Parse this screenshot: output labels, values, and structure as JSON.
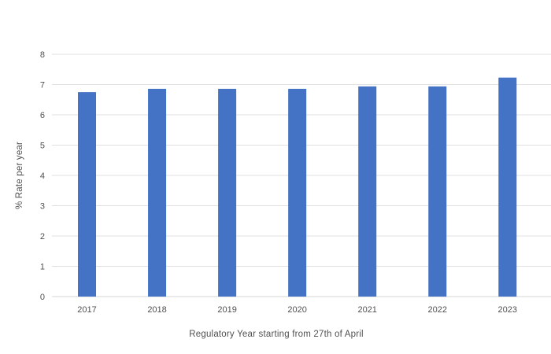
{
  "chart_data": {
    "type": "bar",
    "categories": [
      "2017",
      "2018",
      "2019",
      "2020",
      "2021",
      "2022",
      "2023"
    ],
    "values": [
      6.75,
      6.86,
      6.86,
      6.86,
      6.94,
      6.94,
      7.23
    ],
    "xlabel": "Regulatory Year starting from 27th of April",
    "ylabel": "% Rate per year",
    "ylim": [
      0,
      8
    ],
    "yticks": [
      "0",
      "1",
      "2",
      "3",
      "4",
      "5",
      "6",
      "7",
      "8"
    ],
    "grid": true,
    "legend": "none",
    "bar_color": "#4472c4"
  }
}
